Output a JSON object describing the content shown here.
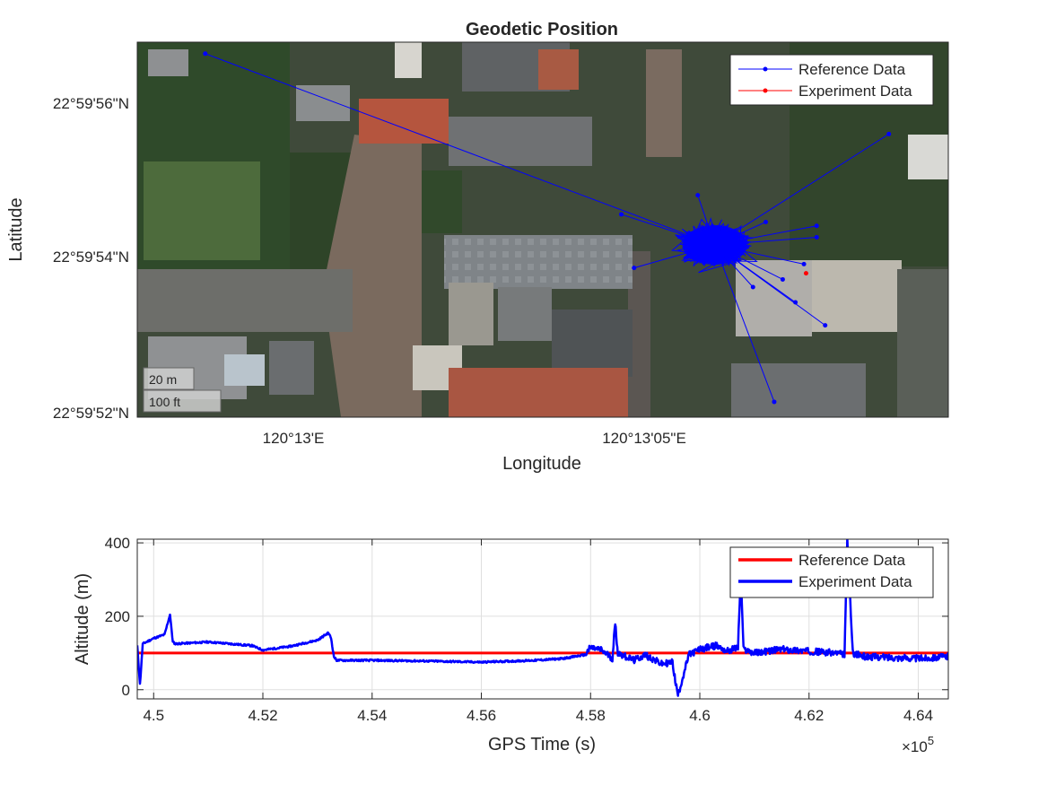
{
  "chart_data": [
    {
      "type": "scatter",
      "title": "Geodetic Position",
      "xlabel": "Longitude",
      "ylabel": "Latitude",
      "x_tick_labels": [
        "120°13'E",
        "120°13'05\"E"
      ],
      "y_tick_labels": [
        "22°59'56\"N",
        "22°59'54\"N",
        "22°59'52\"N"
      ],
      "x_ticks_seconds": [
        60,
        65
      ],
      "y_ticks_seconds": [
        56,
        54,
        52
      ],
      "xlim_seconds": [
        52.2,
        71.3
      ],
      "ylim_seconds": [
        51.9,
        56.8
      ],
      "basemap": "satellite imagery",
      "scale_bar": {
        "metric_label": "20 m",
        "imperial_label": "100 ft"
      },
      "legend": {
        "location": "top-right",
        "entries": [
          {
            "label": "Reference Data",
            "color": "#0000ff"
          },
          {
            "label": "Experiment Data",
            "color": "#ff0000"
          }
        ]
      },
      "series": [
        {
          "name": "Reference Data",
          "color": "#0000ff",
          "cluster_center": [
            65.8,
            54.15
          ],
          "outliers": [
            [
              53.8,
              56.65
            ],
            [
              69.9,
              55.6
            ],
            [
              65.4,
              54.8
            ],
            [
              63.6,
              54.55
            ],
            [
              67.0,
              54.45
            ],
            [
              68.2,
              54.25
            ],
            [
              68.2,
              54.4
            ],
            [
              63.9,
              53.85
            ],
            [
              67.7,
              53.4
            ],
            [
              68.4,
              53.1
            ],
            [
              67.2,
              52.1
            ],
            [
              66.7,
              53.6
            ],
            [
              67.4,
              53.7
            ],
            [
              67.9,
              53.9
            ]
          ]
        },
        {
          "name": "Experiment Data",
          "color": "#ff0000",
          "points": [
            [
              67.95,
              53.78
            ]
          ]
        }
      ]
    },
    {
      "type": "line",
      "xlabel": "GPS Time (s)",
      "ylabel": "Altitude (m)",
      "x_exponent_label": "×10",
      "x_exponent_power": "5",
      "xlim": [
        449700,
        464550
      ],
      "ylim": [
        -25,
        410
      ],
      "x_ticks": [
        450000,
        452000,
        454000,
        456000,
        458000,
        460000,
        462000,
        464000
      ],
      "x_tick_labels": [
        "4.5",
        "4.52",
        "4.54",
        "4.56",
        "4.58",
        "4.6",
        "4.62",
        "4.64"
      ],
      "y_ticks": [
        0,
        200,
        400
      ],
      "y_tick_labels": [
        "0",
        "200",
        "400"
      ],
      "grid": true,
      "legend": {
        "location": "top-right",
        "entries": [
          {
            "label": "Reference Data",
            "color": "#ff0000"
          },
          {
            "label": "Experiment Data",
            "color": "#0000ff"
          }
        ]
      },
      "series": [
        {
          "name": "Reference Data",
          "color": "#ff0000",
          "x": [
            449700,
            453300,
            453300,
            457900,
            457900,
            464550
          ],
          "y": [
            100,
            100,
            100,
            100,
            100,
            100
          ]
        },
        {
          "name": "Experiment Data",
          "color": "#0000ff",
          "x": [
            449700,
            449750,
            449800,
            450000,
            450200,
            450300,
            450350,
            450400,
            451000,
            451800,
            452000,
            452500,
            453000,
            453200,
            453250,
            453300,
            453350,
            454000,
            455000,
            456000,
            457000,
            457500,
            457900,
            458000,
            458200,
            458400,
            458450,
            458500,
            458800,
            459000,
            459300,
            459500,
            459550,
            459600,
            459800,
            460000,
            460300,
            460500,
            460700,
            460750,
            460800,
            461000,
            461500,
            462000,
            462500,
            462650,
            462700,
            462800,
            463000,
            463500,
            464000,
            464550
          ],
          "y": [
            120,
            15,
            125,
            140,
            150,
            205,
            130,
            125,
            130,
            120,
            108,
            118,
            135,
            155,
            140,
            90,
            80,
            80,
            78,
            75,
            80,
            85,
            95,
            115,
            108,
            85,
            180,
            100,
            80,
            95,
            70,
            75,
            25,
            -15,
            95,
            110,
            120,
            105,
            115,
            320,
            110,
            100,
            110,
            105,
            100,
            95,
            410,
            100,
            90,
            88,
            85,
            90
          ]
        }
      ]
    }
  ]
}
